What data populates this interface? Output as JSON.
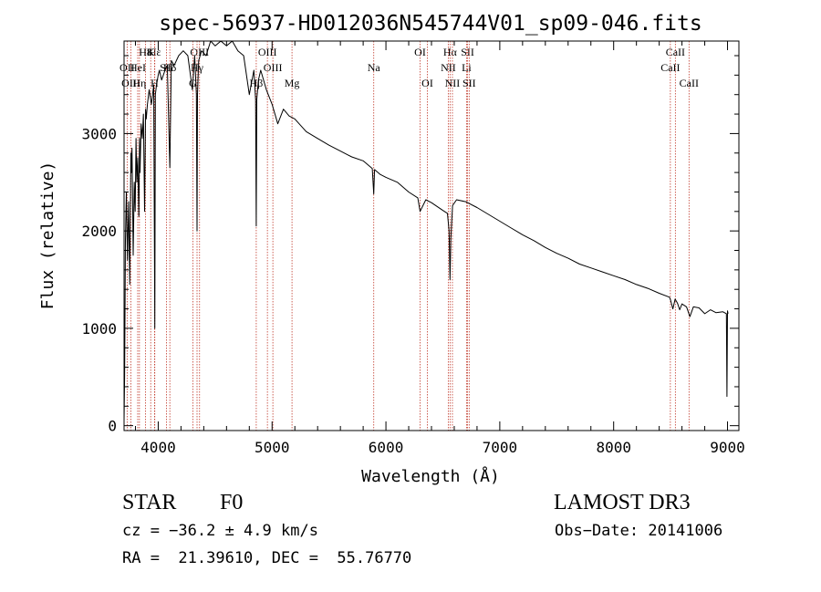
{
  "chart_data": {
    "type": "line",
    "title": "spec-56937-HD012036N545744V01_sp09-046.fits",
    "xlabel": "Wavelength (Å)",
    "ylabel": "Flux (relative)",
    "xlim": [
      3700,
      9100
    ],
    "ylim": [
      -50,
      3950
    ],
    "x_ticks": [
      4000,
      5000,
      6000,
      7000,
      8000,
      9000
    ],
    "y_ticks": [
      0,
      1000,
      2000,
      3000
    ],
    "grid": false,
    "series": [
      {
        "name": "spectrum",
        "x": [
          3700,
          3705,
          3712,
          3720,
          3730,
          3740,
          3750,
          3760,
          3765,
          3770,
          3775,
          3780,
          3790,
          3798,
          3805,
          3812,
          3820,
          3830,
          3836,
          3840,
          3850,
          3860,
          3870,
          3880,
          3889,
          3895,
          3905,
          3920,
          3940,
          3960,
          3970,
          3975,
          3985,
          4000,
          4010,
          4030,
          4060,
          4080,
          4102,
          4115,
          4140,
          4180,
          4220,
          4260,
          4300,
          4320,
          4335,
          4341,
          4345,
          4355,
          4380,
          4420,
          4460,
          4500,
          4550,
          4600,
          4650,
          4700,
          4750,
          4800,
          4840,
          4855,
          4861,
          4866,
          4880,
          4900,
          4950,
          5000,
          5050,
          5100,
          5150,
          5200,
          5300,
          5400,
          5500,
          5600,
          5700,
          5800,
          5880,
          5893,
          5900,
          5950,
          6000,
          6100,
          6200,
          6280,
          6300,
          6350,
          6400,
          6500,
          6540,
          6555,
          6563,
          6570,
          6585,
          6620,
          6700,
          6800,
          6900,
          7000,
          7100,
          7200,
          7300,
          7400,
          7500,
          7600,
          7700,
          7800,
          7900,
          8000,
          8100,
          8200,
          8300,
          8400,
          8490,
          8500,
          8520,
          8540,
          8560,
          8580,
          8600,
          8640,
          8670,
          8700,
          8750,
          8800,
          8850,
          8900,
          8960,
          8990,
          8995,
          9000,
          9005
        ],
        "values": [
          50,
          500,
          1900,
          2400,
          1700,
          2300,
          1450,
          2800,
          2600,
          2850,
          2300,
          1750,
          2500,
          2200,
          2950,
          2500,
          2750,
          2150,
          2950,
          2600,
          3100,
          2950,
          3200,
          2200,
          3250,
          3150,
          3300,
          3450,
          3300,
          3500,
          1000,
          3400,
          3500,
          3600,
          3650,
          3550,
          3650,
          3700,
          2650,
          3750,
          3700,
          3800,
          3850,
          3800,
          3450,
          3800,
          3400,
          2000,
          3400,
          3750,
          3850,
          3800,
          3950,
          3900,
          3950,
          3900,
          3950,
          3850,
          3800,
          3400,
          3650,
          3350,
          2050,
          3350,
          3550,
          3650,
          3450,
          3300,
          3100,
          3250,
          3180,
          3150,
          3020,
          2950,
          2880,
          2820,
          2760,
          2720,
          2640,
          2380,
          2630,
          2580,
          2550,
          2500,
          2400,
          2340,
          2200,
          2320,
          2290,
          2210,
          2180,
          2000,
          1500,
          1920,
          2260,
          2320,
          2300,
          2240,
          2170,
          2100,
          2030,
          1960,
          1900,
          1830,
          1770,
          1720,
          1660,
          1620,
          1580,
          1540,
          1500,
          1450,
          1410,
          1360,
          1320,
          1290,
          1200,
          1300,
          1260,
          1190,
          1250,
          1220,
          1120,
          1220,
          1210,
          1150,
          1190,
          1160,
          1170,
          1150,
          300,
          1180,
          1150
        ],
        "color": "#000000"
      }
    ],
    "line_markers": [
      {
        "name": "H8",
        "wavelength": 3889,
        "label_row": 1
      },
      {
        "name": "K",
        "wavelength": 3934,
        "label_row": 1
      },
      {
        "name": "Hε",
        "wavelength": 3970,
        "label_row": 1
      },
      {
        "name": "OII",
        "wavelength": 3727,
        "label_row": 2
      },
      {
        "name": "HeI",
        "wavelength": 3820,
        "label_row": 2
      },
      {
        "name": "SII",
        "wavelength": 4072,
        "label_row": 2
      },
      {
        "name": "OIII",
        "wavelength": 3760,
        "label_row": 3
      },
      {
        "name": "Hη",
        "wavelength": 3835,
        "label_row": 3
      },
      {
        "name": "H",
        "wavelength": 3968,
        "label_row": 3
      },
      {
        "name": "OIII",
        "wavelength": 4363,
        "label_row": 1
      },
      {
        "name": "Hγ",
        "wavelength": 4341,
        "label_row": 2
      },
      {
        "name": "G",
        "wavelength": 4304,
        "label_row": 3
      },
      {
        "name": "Hδ",
        "wavelength": 4102,
        "label_row": 2
      },
      {
        "name": "OIII",
        "wavelength": 4959,
        "label_row": 1
      },
      {
        "name": "OIII",
        "wavelength": 5007,
        "label_row": 2
      },
      {
        "name": "Hβ",
        "wavelength": 4861,
        "label_row": 3
      },
      {
        "name": "Mg",
        "wavelength": 5175,
        "label_row": 3
      },
      {
        "name": "Na",
        "wavelength": 5893,
        "label_row": 2
      },
      {
        "name": "OI",
        "wavelength": 6300,
        "label_row": 1
      },
      {
        "name": "OI",
        "wavelength": 6364,
        "label_row": 3
      },
      {
        "name": "Hα",
        "wavelength": 6563,
        "label_row": 1
      },
      {
        "name": "SII",
        "wavelength": 6717,
        "label_row": 1
      },
      {
        "name": "NII",
        "wavelength": 6548,
        "label_row": 2
      },
      {
        "name": "Li",
        "wavelength": 6708,
        "label_row": 2
      },
      {
        "name": "NII",
        "wavelength": 6584,
        "label_row": 3
      },
      {
        "name": "SII",
        "wavelength": 6731,
        "label_row": 3
      },
      {
        "name": "CaII",
        "wavelength": 8542,
        "label_row": 1
      },
      {
        "name": "CaII",
        "wavelength": 8498,
        "label_row": 2
      },
      {
        "name": "CaII",
        "wavelength": 8662,
        "label_row": 3
      }
    ],
    "marker_color": "#c0392b"
  },
  "info": {
    "object_class": "STAR",
    "subclass": "F0",
    "survey": "LAMOST DR3",
    "cz": "cz = −36.2 ± 4.9 km/s",
    "obs_date": "Obs−Date: 20141006",
    "coords": "RA =  21.39610, DEC =  55.76770"
  }
}
